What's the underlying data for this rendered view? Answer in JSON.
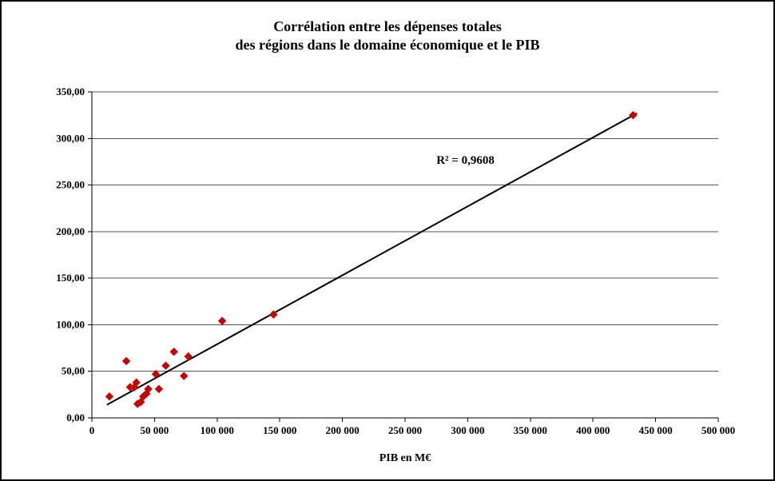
{
  "header": {
    "title_line1": "Corrélation entre les dépenses totales",
    "title_line2": "des régions dans le domaine économique et le PIB"
  },
  "axes": {
    "x_label": "PIB en M€"
  },
  "colors": {
    "marker": "#cc0000",
    "trendline": "#000000",
    "axis": "#000000",
    "grid": "#555555"
  },
  "chart_data": {
    "type": "scatter",
    "title": "Corrélation entre les dépenses totales des régions dans le domaine économique et le PIB",
    "xlabel": "PIB en M€",
    "ylabel": "",
    "xlim": [
      0,
      500000
    ],
    "ylim": [
      0,
      350
    ],
    "x_ticks": [
      0,
      50000,
      100000,
      150000,
      200000,
      250000,
      300000,
      350000,
      400000,
      450000,
      500000
    ],
    "x_tick_labels": [
      "0",
      "50 000",
      "100 000",
      "150 000",
      "200 000",
      "250 000",
      "300 000",
      "350 000",
      "400 000",
      "450 000",
      "500 000"
    ],
    "y_ticks": [
      0,
      50,
      100,
      150,
      200,
      250,
      300,
      350
    ],
    "y_tick_labels": [
      "0,00",
      "50,00",
      "100,00",
      "150,00",
      "200,00",
      "250,00",
      "300,00",
      "350,00"
    ],
    "grid": "horizontal",
    "legend": "none",
    "points": [
      [
        14000,
        23
      ],
      [
        27500,
        61
      ],
      [
        30500,
        33
      ],
      [
        34000,
        33
      ],
      [
        35500,
        38
      ],
      [
        36500,
        15
      ],
      [
        39000,
        17
      ],
      [
        41000,
        23
      ],
      [
        43500,
        26
      ],
      [
        45000,
        31
      ],
      [
        51000,
        47
      ],
      [
        53500,
        31
      ],
      [
        59000,
        56
      ],
      [
        65500,
        71
      ],
      [
        73500,
        45
      ],
      [
        77000,
        66
      ],
      [
        104000,
        104
      ],
      [
        145000,
        111
      ],
      [
        432000,
        325
      ]
    ],
    "trendline": {
      "x1": 12000,
      "y1": 14,
      "x2": 435000,
      "y2": 327
    },
    "annotation": {
      "text": "R² = 0,9608",
      "x": 275000,
      "y": 273
    }
  }
}
